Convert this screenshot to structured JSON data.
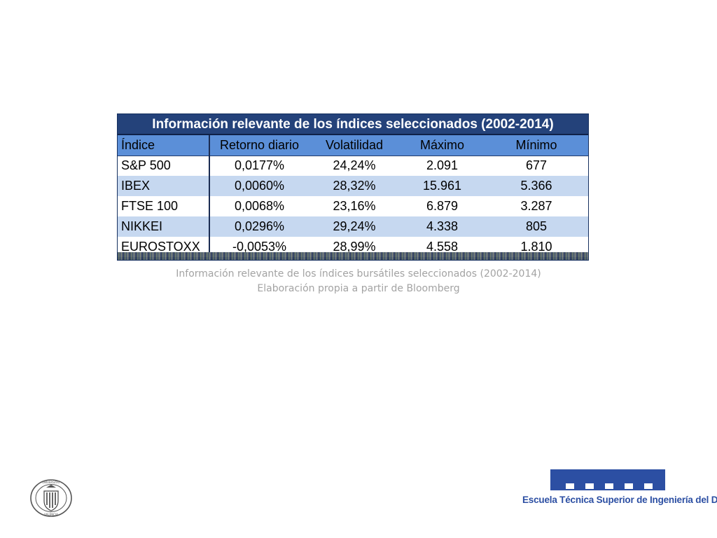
{
  "table": {
    "title": "Información relevante de los índices seleccionados (2002-2014)",
    "headers": [
      "Índice",
      "Retorno diario",
      "Volatilidad",
      "Máximo",
      "Mínimo"
    ],
    "rows": [
      [
        "S&P 500",
        "0,0177%",
        "24,24%",
        "2.091",
        "677"
      ],
      [
        "IBEX",
        "0,0060%",
        "28,32%",
        "15.961",
        "5.366"
      ],
      [
        "FTSE 100",
        "0,0068%",
        "23,16%",
        "6.879",
        "3.287"
      ],
      [
        "NIKKEI",
        "0,0296%",
        "29,24%",
        "4.338",
        "805"
      ],
      [
        "EUROSTOXX",
        "-0,0053%",
        "28,99%",
        "4.558",
        "1.810"
      ]
    ]
  },
  "caption": {
    "line1": "Información relevante de los índices bursátiles seleccionados (2002-2014)",
    "line2": "Elaboración propia a partir de Bloomberg"
  },
  "footer": {
    "seal_text": "UNIVERSITAT POLITÈCNICA DE VALÈNCIA",
    "school_name": "Escuela Técnica Superior de Ingeniería del Diseño"
  },
  "colors": {
    "title_bg": "#24427a",
    "header_bg": "#5b8fd8",
    "row_alt_bg": "#c6d8f0",
    "logo_blue": "#2c4fa3",
    "caption_gray": "#a3a3a3"
  }
}
